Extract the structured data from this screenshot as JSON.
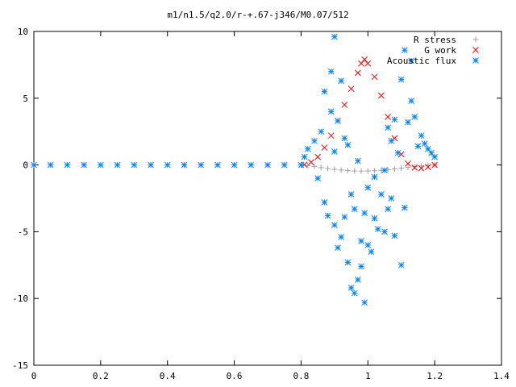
{
  "chart_data": {
    "type": "scatter",
    "title": "m1/n1.5/q2.0/r-+.67-j346/M0.07/512",
    "xlabel": "",
    "ylabel": "",
    "xlim": [
      0,
      1.4
    ],
    "ylim": [
      -15,
      10
    ],
    "x_ticks": [
      "0",
      "0.2",
      "0.4",
      "0.6",
      "0.8",
      "1",
      "1.2",
      "1.4"
    ],
    "x_tick_values": [
      0,
      0.2,
      0.4,
      0.6,
      0.8,
      1.0,
      1.2,
      1.4
    ],
    "y_ticks": [
      "10",
      "5",
      "0",
      "-5",
      "-10",
      "-15"
    ],
    "y_tick_values": [
      10,
      5,
      0,
      -5,
      -10,
      -15
    ],
    "grid": false,
    "legend_position": "top-right",
    "series": [
      {
        "name": "R stress",
        "marker": "plus",
        "color": "#a0a0a0",
        "points": [
          [
            0.82,
            -0.05
          ],
          [
            0.84,
            -0.12
          ],
          [
            0.86,
            -0.2
          ],
          [
            0.88,
            -0.27
          ],
          [
            0.9,
            -0.33
          ],
          [
            0.92,
            -0.38
          ],
          [
            0.94,
            -0.42
          ],
          [
            0.96,
            -0.45
          ],
          [
            0.98,
            -0.46
          ],
          [
            1.0,
            -0.45
          ],
          [
            1.02,
            -0.43
          ],
          [
            1.04,
            -0.4
          ],
          [
            1.06,
            -0.35
          ],
          [
            1.08,
            -0.3
          ],
          [
            1.1,
            -0.24
          ],
          [
            1.12,
            -0.18
          ],
          [
            1.14,
            -0.12
          ],
          [
            1.16,
            -0.07
          ],
          [
            1.18,
            -0.03
          ],
          [
            1.2,
            0.0
          ]
        ]
      },
      {
        "name": "G work",
        "marker": "cross",
        "color": "#ff0000",
        "points": [
          [
            0.81,
            0.02
          ],
          [
            0.83,
            0.2
          ],
          [
            0.85,
            0.6
          ],
          [
            0.87,
            1.3
          ],
          [
            0.89,
            2.2
          ],
          [
            0.91,
            3.3
          ],
          [
            0.93,
            4.5
          ],
          [
            0.95,
            5.7
          ],
          [
            0.97,
            6.9
          ],
          [
            0.98,
            7.6
          ],
          [
            0.99,
            7.9
          ],
          [
            1.0,
            7.6
          ],
          [
            1.02,
            6.6
          ],
          [
            1.04,
            5.2
          ],
          [
            1.06,
            3.6
          ],
          [
            1.08,
            2.0
          ],
          [
            1.1,
            0.8
          ],
          [
            1.12,
            0.1
          ],
          [
            1.14,
            -0.2
          ],
          [
            1.16,
            -0.25
          ],
          [
            1.18,
            -0.15
          ],
          [
            1.2,
            0.0
          ]
        ]
      },
      {
        "name": "Acoustic flux",
        "marker": "star",
        "color": "#0080ff",
        "points": [
          [
            0.0,
            0.0
          ],
          [
            0.05,
            0.0
          ],
          [
            0.1,
            0.0
          ],
          [
            0.15,
            0.0
          ],
          [
            0.2,
            0.0
          ],
          [
            0.25,
            0.0
          ],
          [
            0.3,
            0.0
          ],
          [
            0.35,
            0.0
          ],
          [
            0.4,
            0.0
          ],
          [
            0.45,
            0.0
          ],
          [
            0.5,
            0.0
          ],
          [
            0.55,
            0.0
          ],
          [
            0.6,
            0.0
          ],
          [
            0.65,
            0.0
          ],
          [
            0.7,
            0.0
          ],
          [
            0.75,
            0.0
          ],
          [
            0.8,
            0.0
          ],
          [
            0.81,
            0.6
          ],
          [
            0.82,
            1.2
          ],
          [
            0.84,
            1.8
          ],
          [
            0.85,
            -1.0
          ],
          [
            0.86,
            2.5
          ],
          [
            0.87,
            5.5
          ],
          [
            0.87,
            -2.8
          ],
          [
            0.88,
            -3.8
          ],
          [
            0.89,
            7.0
          ],
          [
            0.89,
            4.0
          ],
          [
            0.9,
            9.6
          ],
          [
            0.9,
            1.0
          ],
          [
            0.9,
            -4.5
          ],
          [
            0.91,
            3.3
          ],
          [
            0.91,
            -6.2
          ],
          [
            0.92,
            6.3
          ],
          [
            0.92,
            -5.4
          ],
          [
            0.93,
            -3.9
          ],
          [
            0.93,
            2.0
          ],
          [
            0.94,
            -7.3
          ],
          [
            0.94,
            1.5
          ],
          [
            0.95,
            -9.2
          ],
          [
            0.95,
            -2.2
          ],
          [
            0.96,
            -9.6
          ],
          [
            0.96,
            -3.3
          ],
          [
            0.97,
            -8.6
          ],
          [
            0.97,
            0.3
          ],
          [
            0.98,
            -7.6
          ],
          [
            0.98,
            -5.7
          ],
          [
            0.99,
            -10.3
          ],
          [
            0.99,
            -3.6
          ],
          [
            1.0,
            -6.0
          ],
          [
            1.0,
            -1.7
          ],
          [
            1.01,
            -6.5
          ],
          [
            1.02,
            -4.0
          ],
          [
            1.02,
            -0.9
          ],
          [
            1.03,
            -4.8
          ],
          [
            1.04,
            -2.2
          ],
          [
            1.05,
            -5.0
          ],
          [
            1.05,
            -0.4
          ],
          [
            1.06,
            -3.3
          ],
          [
            1.06,
            2.8
          ],
          [
            1.07,
            -2.5
          ],
          [
            1.07,
            1.8
          ],
          [
            1.08,
            -5.3
          ],
          [
            1.08,
            3.4
          ],
          [
            1.09,
            0.9
          ],
          [
            1.1,
            -7.5
          ],
          [
            1.1,
            6.4
          ],
          [
            1.11,
            -3.2
          ],
          [
            1.11,
            8.6
          ],
          [
            1.12,
            3.2
          ],
          [
            1.13,
            4.8
          ],
          [
            1.13,
            7.8
          ],
          [
            1.14,
            3.6
          ],
          [
            1.15,
            1.4
          ],
          [
            1.16,
            2.2
          ],
          [
            1.17,
            1.6
          ],
          [
            1.18,
            1.2
          ],
          [
            1.19,
            0.9
          ],
          [
            1.2,
            0.6
          ]
        ]
      }
    ]
  }
}
